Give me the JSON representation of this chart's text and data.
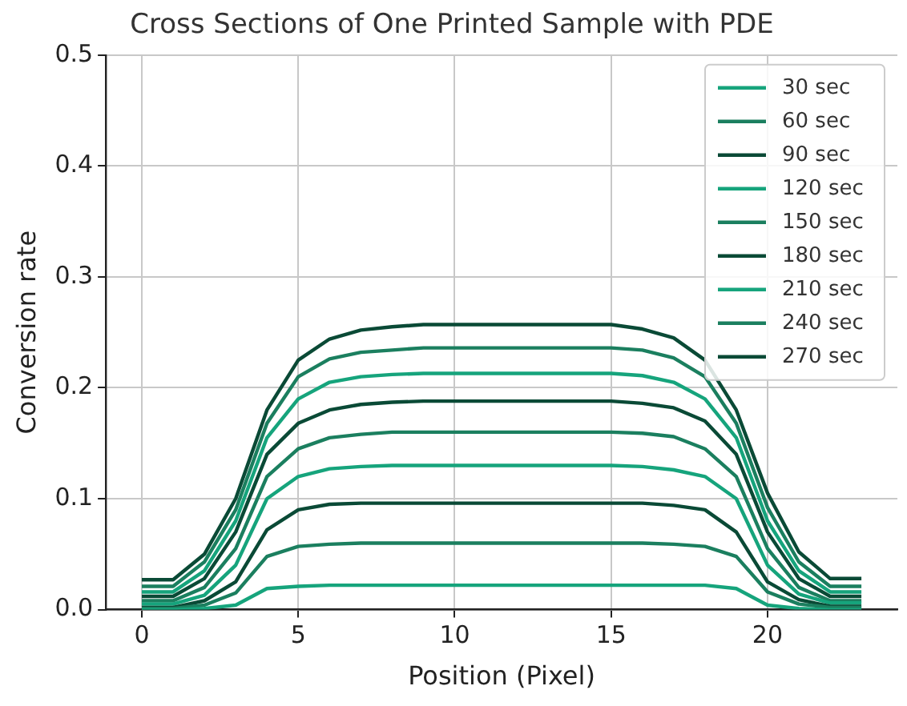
{
  "chart_data": {
    "type": "line",
    "title": "Cross Sections of One Printed Sample with PDE",
    "xlabel": "Position (Pixel)",
    "ylabel": "Conversion rate",
    "x": [
      0,
      1,
      2,
      3,
      4,
      5,
      6,
      7,
      8,
      9,
      10,
      11,
      12,
      13,
      14,
      15,
      16,
      17,
      18,
      19,
      20,
      21,
      22,
      23
    ],
    "xlim": [
      -1.15,
      24.15
    ],
    "xticks": [
      0,
      5,
      10,
      15,
      20
    ],
    "ylim": [
      0,
      0.5
    ],
    "yticks": [
      {
        "value": 0,
        "label": "0.0"
      },
      {
        "value": 0.1,
        "label": "0.1"
      },
      {
        "value": 0.2,
        "label": "0.2"
      },
      {
        "value": 0.3,
        "label": "0.3"
      },
      {
        "value": 0.4,
        "label": "0.4"
      },
      {
        "value": 0.5,
        "label": "0.5"
      }
    ],
    "grid": true,
    "legend": "top right",
    "marker": "none",
    "line_style": "solid",
    "series": [
      {
        "name": "30 sec",
        "color": "#16a47c",
        "values": [
          0,
          0,
          0.001,
          0.004,
          0.019,
          0.021,
          0.022,
          0.022,
          0.022,
          0.022,
          0.022,
          0.022,
          0.022,
          0.022,
          0.022,
          0.022,
          0.022,
          0.022,
          0.022,
          0.019,
          0.004,
          0.001,
          0,
          0
        ]
      },
      {
        "name": "60 sec",
        "color": "#1b7f5f",
        "values": [
          0.001,
          0.001,
          0.004,
          0.015,
          0.048,
          0.057,
          0.059,
          0.06,
          0.06,
          0.06,
          0.06,
          0.06,
          0.06,
          0.06,
          0.06,
          0.06,
          0.06,
          0.059,
          0.057,
          0.048,
          0.016,
          0.005,
          0.002,
          0.002
        ]
      },
      {
        "name": "90 sec",
        "color": "#0a4a36",
        "values": [
          0.002,
          0.002,
          0.008,
          0.025,
          0.072,
          0.09,
          0.095,
          0.096,
          0.096,
          0.096,
          0.096,
          0.096,
          0.096,
          0.096,
          0.096,
          0.096,
          0.096,
          0.094,
          0.09,
          0.07,
          0.025,
          0.009,
          0.003,
          0.003
        ]
      },
      {
        "name": "120 sec",
        "color": "#16a47c",
        "values": [
          0.005,
          0.005,
          0.013,
          0.04,
          0.1,
          0.12,
          0.127,
          0.129,
          0.13,
          0.13,
          0.13,
          0.13,
          0.13,
          0.13,
          0.13,
          0.13,
          0.129,
          0.126,
          0.12,
          0.1,
          0.04,
          0.014,
          0.006,
          0.006
        ]
      },
      {
        "name": "150 sec",
        "color": "#1b7f5f",
        "values": [
          0.008,
          0.008,
          0.02,
          0.055,
          0.12,
          0.145,
          0.155,
          0.158,
          0.16,
          0.16,
          0.16,
          0.16,
          0.16,
          0.16,
          0.16,
          0.16,
          0.159,
          0.156,
          0.145,
          0.12,
          0.055,
          0.02,
          0.008,
          0.008
        ]
      },
      {
        "name": "180 sec",
        "color": "#0a4a36",
        "values": [
          0.012,
          0.012,
          0.028,
          0.07,
          0.14,
          0.168,
          0.18,
          0.185,
          0.187,
          0.188,
          0.188,
          0.188,
          0.188,
          0.188,
          0.188,
          0.188,
          0.186,
          0.182,
          0.17,
          0.14,
          0.07,
          0.028,
          0.012,
          0.012
        ]
      },
      {
        "name": "210 sec",
        "color": "#16a47c",
        "values": [
          0.016,
          0.016,
          0.035,
          0.08,
          0.155,
          0.19,
          0.205,
          0.21,
          0.212,
          0.213,
          0.213,
          0.213,
          0.213,
          0.213,
          0.213,
          0.213,
          0.211,
          0.205,
          0.19,
          0.155,
          0.08,
          0.035,
          0.016,
          0.016
        ]
      },
      {
        "name": "240 sec",
        "color": "#1b7f5f",
        "values": [
          0.021,
          0.021,
          0.043,
          0.09,
          0.168,
          0.21,
          0.226,
          0.232,
          0.234,
          0.236,
          0.236,
          0.236,
          0.236,
          0.236,
          0.236,
          0.236,
          0.234,
          0.227,
          0.21,
          0.168,
          0.092,
          0.043,
          0.021,
          0.021
        ]
      },
      {
        "name": "270 sec",
        "color": "#0a4a36",
        "values": [
          0.027,
          0.027,
          0.05,
          0.1,
          0.18,
          0.225,
          0.244,
          0.252,
          0.255,
          0.257,
          0.257,
          0.257,
          0.257,
          0.257,
          0.257,
          0.257,
          0.253,
          0.245,
          0.225,
          0.18,
          0.105,
          0.052,
          0.028,
          0.028
        ]
      }
    ]
  }
}
